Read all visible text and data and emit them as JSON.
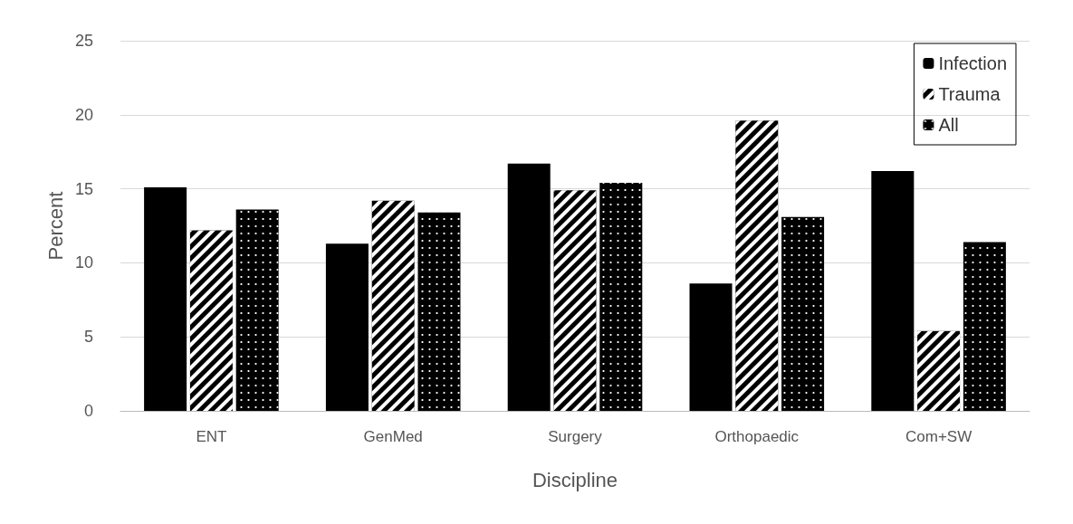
{
  "chart_data": {
    "type": "bar",
    "xlabel": "Discipline",
    "ylabel": "Percent",
    "categories": [
      "ENT",
      "GenMed",
      "Surgery",
      "Orthopaedic",
      "Com+SW"
    ],
    "series": [
      {
        "name": "Infection",
        "color": "#000000",
        "values": [
          15.1,
          11.3,
          16.7,
          8.6,
          16.2
        ]
      },
      {
        "name": "Trauma",
        "color": "#000000",
        "values": [
          12.2,
          14.2,
          14.9,
          19.6,
          5.4
        ]
      },
      {
        "name": "All",
        "color": "#000000",
        "values": [
          13.6,
          13.4,
          15.4,
          13.1,
          11.4
        ]
      }
    ],
    "ylim": [
      0,
      25
    ],
    "yticks": [
      0,
      5,
      10,
      15,
      20,
      25
    ],
    "grid": "y",
    "legend": "top right"
  }
}
